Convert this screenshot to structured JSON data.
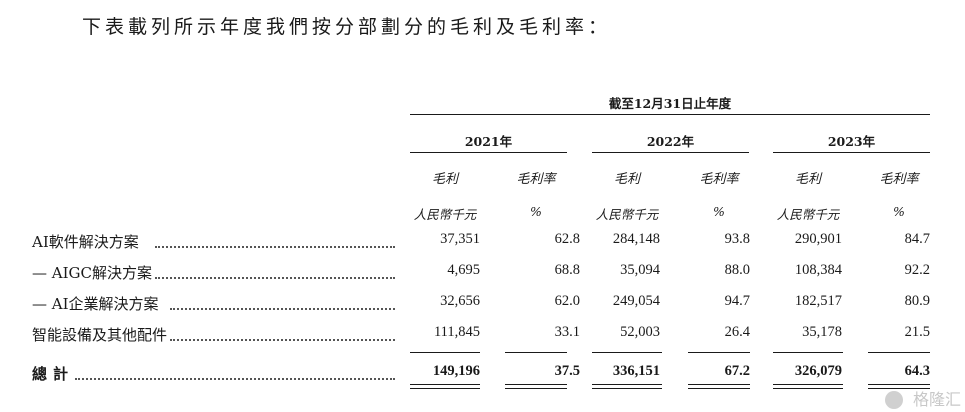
{
  "intro": "下表載列所示年度我們按分部劃分的毛利及毛利率：",
  "period_header": "截至12月31日止年度",
  "years": [
    "2021年",
    "2022年",
    "2023年"
  ],
  "col_gross_profit": "毛利",
  "col_margin": "毛利率",
  "unit_rmb": "人民幣千元",
  "unit_pct": "%",
  "rows": [
    {
      "label": "AI軟件解決方案",
      "v": [
        "37,351",
        "62.8",
        "284,148",
        "93.8",
        "290,901",
        "84.7"
      ]
    },
    {
      "label": "— AIGC解決方案",
      "v": [
        "4,695",
        "68.8",
        "35,094",
        "88.0",
        "108,384",
        "92.2"
      ]
    },
    {
      "label": "— AI企業解決方案",
      "v": [
        "32,656",
        "62.0",
        "249,054",
        "94.7",
        "182,517",
        "80.9"
      ]
    },
    {
      "label": "智能設備及其他配件",
      "v": [
        "111,845",
        "33.1",
        "52,003",
        "26.4",
        "35,178",
        "21.5"
      ]
    }
  ],
  "total": {
    "label": "總計",
    "v": [
      "149,196",
      "37.5",
      "336,151",
      "67.2",
      "326,079",
      "64.3"
    ]
  },
  "watermark": "格隆汇"
}
